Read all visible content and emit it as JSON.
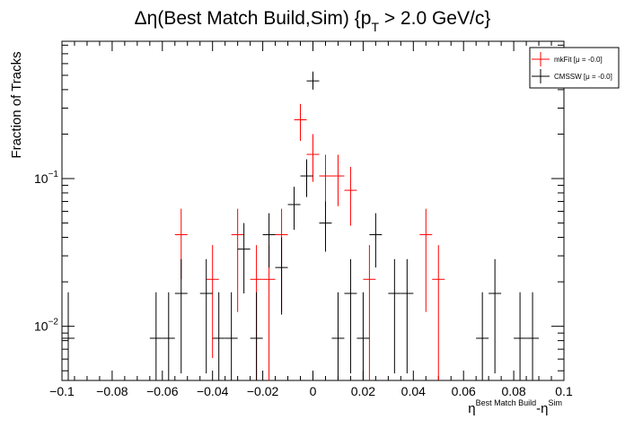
{
  "chart_data": {
    "type": "scatter",
    "title_main": "Δη(Best Match Build,Sim) {p",
    "title_sub": "T",
    "title_tail": " > 2.0 GeV/c}",
    "xlabel_base1": "η",
    "xlabel_sup1": "Best Match Build",
    "xlabel_mid": "-η",
    "xlabel_sup2": "Sim",
    "ylabel": "Fraction of Tracks",
    "xlim": [
      -0.1,
      0.1
    ],
    "ylim_log": [
      0.0043,
      0.85
    ],
    "y_scale": "log",
    "x_ticks": [
      {
        "v": -0.1,
        "label": "−0.1"
      },
      {
        "v": -0.08,
        "label": "−0.08"
      },
      {
        "v": -0.06,
        "label": "−0.06"
      },
      {
        "v": -0.04,
        "label": "−0.04"
      },
      {
        "v": -0.02,
        "label": "−0.02"
      },
      {
        "v": 0,
        "label": "0"
      },
      {
        "v": 0.02,
        "label": "0.02"
      },
      {
        "v": 0.04,
        "label": "0.04"
      },
      {
        "v": 0.06,
        "label": "0.06"
      },
      {
        "v": 0.08,
        "label": "0.08"
      },
      {
        "v": 0.1,
        "label": "0.1"
      }
    ],
    "y_ticks": [
      {
        "v": 0.01,
        "base": "10",
        "exp": "−2"
      },
      {
        "v": 0.1,
        "base": "10",
        "exp": "−1"
      }
    ],
    "bin_half_width": 0.0025,
    "legend_position": "top-right",
    "series": [
      {
        "name": "mkFit  [μ = -0.0]",
        "color": "#ff0000",
        "points": [
          {
            "x": -0.0525,
            "y": 0.0417,
            "ylo": 0.0208,
            "yhi": 0.0625
          },
          {
            "x": -0.04,
            "y": 0.0208,
            "ylo": 0.0061,
            "yhi": 0.0355
          },
          {
            "x": -0.03,
            "y": 0.0417,
            "ylo": 0.0125,
            "yhi": 0.0625
          },
          {
            "x": -0.0225,
            "y": 0.0208,
            "ylo": 0.0043,
            "yhi": 0.0355
          },
          {
            "x": -0.0175,
            "y": 0.0208,
            "ylo": 0.0043,
            "yhi": 0.0355
          },
          {
            "x": -0.0125,
            "y": 0.0417,
            "ylo": 0.0125,
            "yhi": 0.0625
          },
          {
            "x": -0.005,
            "y": 0.25,
            "ylo": 0.18,
            "yhi": 0.32
          },
          {
            "x": 0.0,
            "y": 0.1458,
            "ylo": 0.095,
            "yhi": 0.2
          },
          {
            "x": 0.005,
            "y": 0.1042,
            "ylo": 0.065,
            "yhi": 0.145
          },
          {
            "x": 0.01,
            "y": 0.1042,
            "ylo": 0.065,
            "yhi": 0.145
          },
          {
            "x": 0.015,
            "y": 0.0833,
            "ylo": 0.048,
            "yhi": 0.12
          },
          {
            "x": 0.0225,
            "y": 0.0208,
            "ylo": 0.0043,
            "yhi": 0.0355
          },
          {
            "x": 0.045,
            "y": 0.0417,
            "ylo": 0.0125,
            "yhi": 0.0625
          },
          {
            "x": 0.05,
            "y": 0.0208,
            "ylo": 0.0043,
            "yhi": 0.0355
          }
        ]
      },
      {
        "name": "CMSSW  [μ = -0.0]",
        "color": "#000000",
        "points": [
          {
            "x": -0.0975,
            "y": 0.0083,
            "ylo": 0.0043,
            "yhi": 0.017
          },
          {
            "x": -0.0625,
            "y": 0.0083,
            "ylo": 0.0043,
            "yhi": 0.017
          },
          {
            "x": -0.0575,
            "y": 0.0083,
            "ylo": 0.0043,
            "yhi": 0.017
          },
          {
            "x": -0.0525,
            "y": 0.0167,
            "ylo": 0.0048,
            "yhi": 0.0285
          },
          {
            "x": -0.0425,
            "y": 0.0167,
            "ylo": 0.0048,
            "yhi": 0.0285
          },
          {
            "x": -0.0375,
            "y": 0.0083,
            "ylo": 0.0043,
            "yhi": 0.017
          },
          {
            "x": -0.0325,
            "y": 0.0083,
            "ylo": 0.0043,
            "yhi": 0.017
          },
          {
            "x": -0.0275,
            "y": 0.0333,
            "ylo": 0.0167,
            "yhi": 0.05
          },
          {
            "x": -0.0225,
            "y": 0.0083,
            "ylo": 0.0043,
            "yhi": 0.017
          },
          {
            "x": -0.0175,
            "y": 0.0417,
            "ylo": 0.025,
            "yhi": 0.0583
          },
          {
            "x": -0.0125,
            "y": 0.025,
            "ylo": 0.012,
            "yhi": 0.04
          },
          {
            "x": -0.0075,
            "y": 0.0667,
            "ylo": 0.045,
            "yhi": 0.088
          },
          {
            "x": -0.0025,
            "y": 0.1042,
            "ylo": 0.075,
            "yhi": 0.135
          },
          {
            "x": 0.0,
            "y": 0.4583,
            "ylo": 0.4,
            "yhi": 0.53
          },
          {
            "x": 0.005,
            "y": 0.05,
            "ylo": 0.032,
            "yhi": 0.07
          },
          {
            "x": 0.01,
            "y": 0.0083,
            "ylo": 0.0043,
            "yhi": 0.017
          },
          {
            "x": 0.015,
            "y": 0.0167,
            "ylo": 0.0048,
            "yhi": 0.0285
          },
          {
            "x": 0.02,
            "y": 0.0083,
            "ylo": 0.0043,
            "yhi": 0.017
          },
          {
            "x": 0.025,
            "y": 0.0417,
            "ylo": 0.025,
            "yhi": 0.0583
          },
          {
            "x": 0.0325,
            "y": 0.0167,
            "ylo": 0.0048,
            "yhi": 0.0285
          },
          {
            "x": 0.0375,
            "y": 0.0167,
            "ylo": 0.0048,
            "yhi": 0.0285
          },
          {
            "x": 0.0675,
            "y": 0.0083,
            "ylo": 0.0043,
            "yhi": 0.017
          },
          {
            "x": 0.0725,
            "y": 0.0167,
            "ylo": 0.0048,
            "yhi": 0.0285
          },
          {
            "x": 0.0825,
            "y": 0.0083,
            "ylo": 0.0043,
            "yhi": 0.017
          },
          {
            "x": 0.0875,
            "y": 0.0083,
            "ylo": 0.0043,
            "yhi": 0.017
          }
        ]
      }
    ]
  }
}
